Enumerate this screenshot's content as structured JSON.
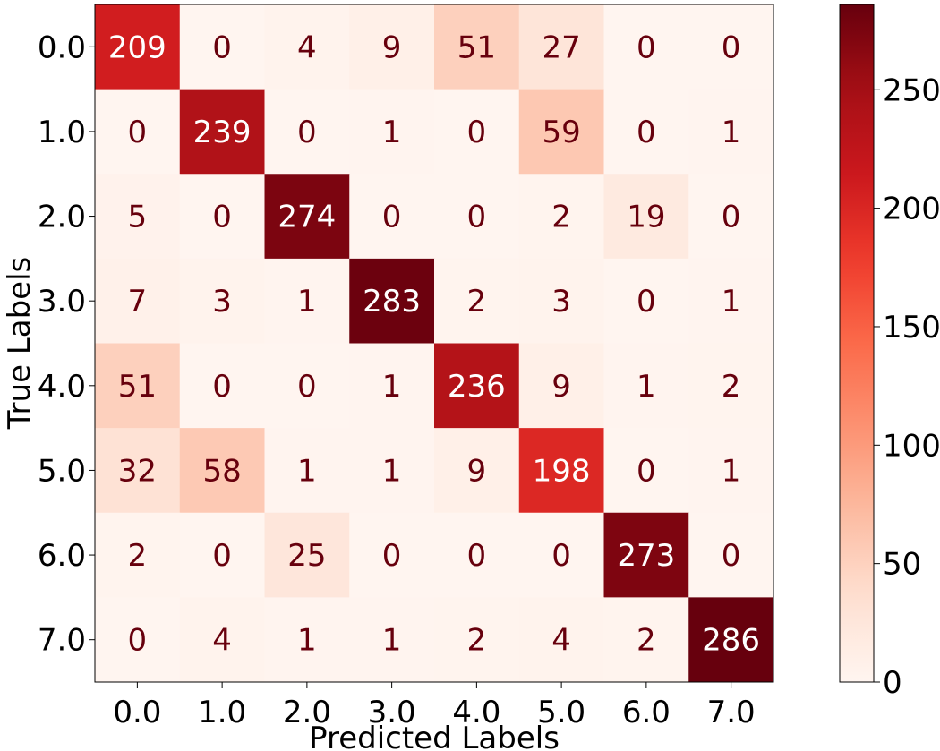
{
  "chart_data": {
    "type": "heatmap",
    "colormap": "Reds",
    "xlabel": "Predicted Labels",
    "ylabel": "True Labels",
    "x_categories": [
      "0.0",
      "1.0",
      "2.0",
      "3.0",
      "4.0",
      "5.0",
      "6.0",
      "7.0"
    ],
    "y_categories": [
      "0.0",
      "1.0",
      "2.0",
      "3.0",
      "4.0",
      "5.0",
      "6.0",
      "7.0"
    ],
    "values": [
      [
        209,
        0,
        4,
        9,
        51,
        27,
        0,
        0
      ],
      [
        0,
        239,
        0,
        1,
        0,
        59,
        0,
        1
      ],
      [
        5,
        0,
        274,
        0,
        0,
        2,
        19,
        0
      ],
      [
        7,
        3,
        1,
        283,
        2,
        3,
        0,
        1
      ],
      [
        51,
        0,
        0,
        1,
        236,
        9,
        1,
        2
      ],
      [
        32,
        58,
        1,
        1,
        9,
        198,
        0,
        1
      ],
      [
        2,
        0,
        25,
        0,
        0,
        0,
        273,
        0
      ],
      [
        0,
        4,
        1,
        1,
        2,
        4,
        2,
        286
      ]
    ],
    "colorbar": {
      "min": 0,
      "max": 286,
      "ticks": [
        0,
        50,
        100,
        150,
        200,
        250
      ]
    },
    "annotation_colors": {
      "light": "#ffffff",
      "dark": "#67000d"
    }
  }
}
